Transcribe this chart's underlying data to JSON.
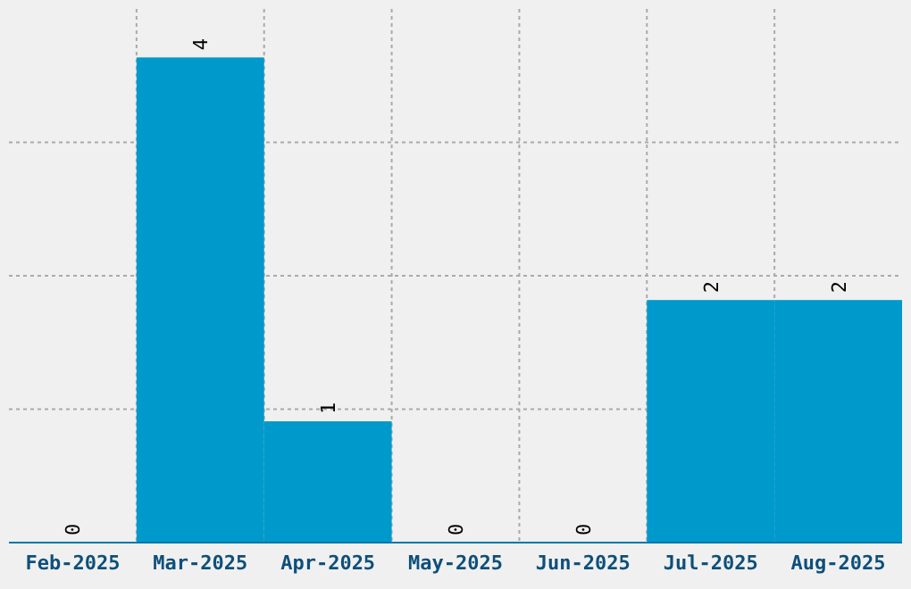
{
  "chart_data": {
    "type": "bar",
    "categories": [
      "Feb-2025",
      "Mar-2025",
      "Apr-2025",
      "May-2025",
      "Jun-2025",
      "Jul-2025",
      "Aug-2025"
    ],
    "values": [
      0,
      4,
      1,
      0,
      0,
      2,
      2
    ],
    "color": "#0099cc",
    "ylim": [
      0,
      4.4
    ],
    "yticks": [
      {
        "value": 0,
        "label": null
      },
      {
        "value": 1.1,
        "label": null
      },
      {
        "value": 2.2,
        "label": null
      },
      {
        "value": 3.3,
        "label": null
      }
    ],
    "tick_labels": "x",
    "grid": true,
    "data_labels": true
  }
}
